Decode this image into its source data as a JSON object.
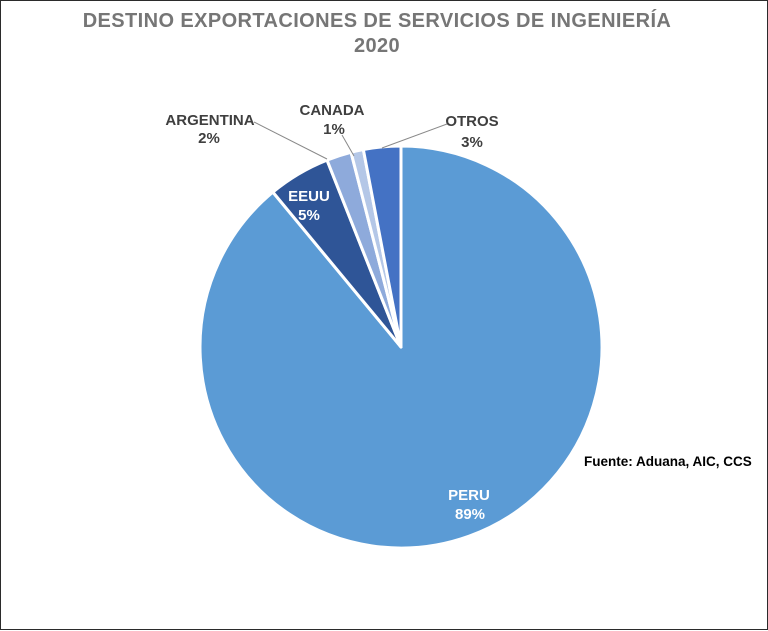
{
  "chart_data": {
    "type": "pie",
    "title": "DESTINO EXPORTACIONES DE SERVICIOS DE INGENIERÍA",
    "subtitle": "2020",
    "source_note": "Fuente: Aduana, AIC, CCS",
    "start_angle_deg": 0,
    "direction": "clockwise",
    "legend": "none",
    "slice_border_color": "#FFFFFF",
    "leader_line_color": "#898989",
    "outside_label_color": "#3F3F3F",
    "inside_label_color": "#FFFFFF",
    "title_color": "#767676",
    "slices": [
      {
        "label": "PERU",
        "value": 89,
        "pct_label": "89%",
        "color": "#5B9BD5",
        "label_position": "inside"
      },
      {
        "label": "EEUU",
        "value": 5,
        "pct_label": "5%",
        "color": "#2F5597",
        "label_position": "inside"
      },
      {
        "label": "ARGENTINA",
        "value": 2,
        "pct_label": "2%",
        "color": "#8EAADB",
        "label_position": "outside"
      },
      {
        "label": "CANADA",
        "value": 1,
        "pct_label": "1%",
        "color": "#B4C7E7",
        "label_position": "outside"
      },
      {
        "label": "OTROS",
        "value": 3,
        "pct_label": "3%",
        "color": "#4472C4",
        "label_position": "outside"
      }
    ]
  }
}
